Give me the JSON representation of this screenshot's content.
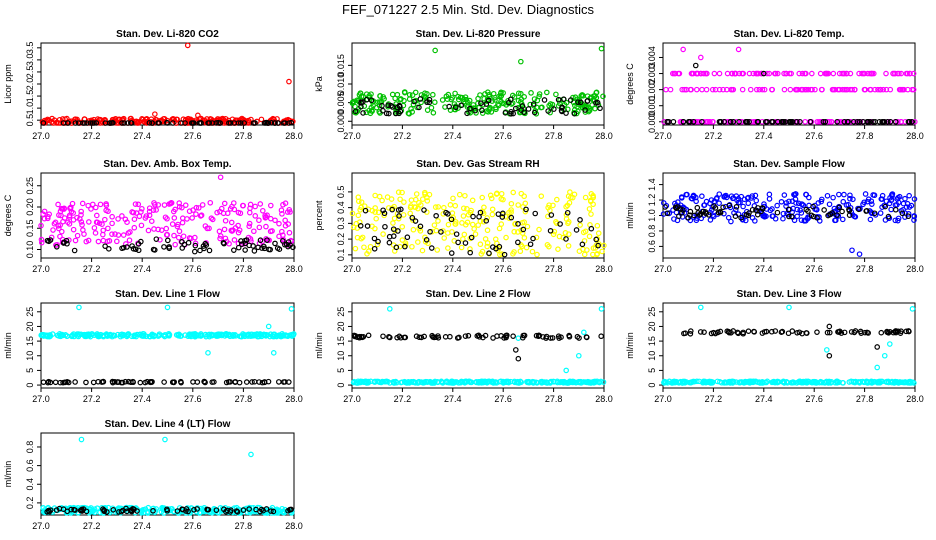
{
  "figure_title": "FEF_071227  2.5 Min. Std. Dev. Diagnostics",
  "colors": {
    "red": "#ff0000",
    "green": "#00c000",
    "magenta": "#ff00ff",
    "yellow": "#ffff00",
    "blue": "#0000ff",
    "cyan": "#00ffff",
    "black": "#000000"
  },
  "chart_data": [
    {
      "type": "scatter",
      "title": "Stan. Dev. Li-820 CO2",
      "ylabel": "Licor ppm",
      "xlim": [
        27.0,
        28.0
      ],
      "ylim": [
        0.3,
        3.7
      ],
      "xticks": [
        "27.0",
        "27.2",
        "27.4",
        "27.6",
        "27.8",
        "28.0"
      ],
      "yticks": [
        0.5,
        1.0,
        1.5,
        2.0,
        2.5,
        3.0,
        3.5
      ],
      "series": [
        {
          "color": "red",
          "base": 0.45,
          "spread": 0.12,
          "outliers": [
            [
              27.58,
              3.6
            ],
            [
              27.98,
              2.1
            ],
            [
              27.45,
              0.75
            ],
            [
              27.62,
              0.7
            ]
          ]
        },
        {
          "color": "black",
          "base": 0.35,
          "spread": 0.05,
          "outliers": []
        }
      ]
    },
    {
      "type": "scatter",
      "title": "Stan. Dev. Li-820 Pressure",
      "ylabel": "kPa",
      "xlim": [
        27.0,
        28.0
      ],
      "ylim": [
        -0.001,
        0.021
      ],
      "xticks": [
        "27.0",
        "27.2",
        "27.4",
        "27.6",
        "27.8",
        "28.0"
      ],
      "yticks": [
        0.0,
        0.005,
        0.01,
        0.015
      ],
      "series": [
        {
          "color": "green",
          "base": 0.005,
          "spread": 0.003,
          "outliers": [
            [
              27.33,
              0.019
            ],
            [
              27.67,
              0.016
            ],
            [
              27.99,
              0.0195
            ]
          ]
        },
        {
          "color": "black",
          "base": 0.004,
          "spread": 0.002,
          "outliers": []
        }
      ]
    },
    {
      "type": "scatter",
      "title": "Stan. Dev. Li-820 Temp.",
      "ylabel": "degrees C",
      "xlim": [
        27.0,
        28.0
      ],
      "ylim": [
        -0.0002,
        0.0049
      ],
      "xticks": [
        "27.0",
        "27.2",
        "27.4",
        "27.6",
        "27.8",
        "28.0"
      ],
      "yticks": [
        0.0,
        0.001,
        0.002,
        0.003,
        0.004
      ],
      "levels": [
        0.0,
        0.002,
        0.003
      ],
      "series": [
        {
          "color": "magenta",
          "base": 0.002,
          "spread": 0.0,
          "outliers": [
            [
              27.08,
              0.0045
            ],
            [
              27.15,
              0.004
            ],
            [
              27.3,
              0.0045
            ],
            [
              27.92,
              0.003
            ]
          ]
        },
        {
          "color": "black",
          "base": 0.0,
          "spread": 0.0,
          "outliers": [
            [
              27.13,
              0.0035
            ],
            [
              27.4,
              0.003
            ]
          ]
        }
      ]
    },
    {
      "type": "scatter",
      "title": "Stan. Dev. Amb. Box Temp.",
      "ylabel": "degrees C",
      "xlim": [
        27.0,
        28.0
      ],
      "ylim": [
        0.08,
        0.28
      ],
      "xticks": [
        "27.0",
        "27.2",
        "27.4",
        "27.6",
        "27.8",
        "28.0"
      ],
      "yticks": [
        0.1,
        0.15,
        0.2,
        0.25
      ],
      "series": [
        {
          "color": "magenta",
          "base": 0.16,
          "spread": 0.05,
          "outliers": [
            [
              27.71,
              0.27
            ]
          ]
        },
        {
          "color": "black",
          "base": 0.11,
          "spread": 0.015,
          "outliers": []
        }
      ]
    },
    {
      "type": "scatter",
      "title": "Stan. Dev. Gas Stream RH",
      "ylabel": "percent",
      "xlim": [
        27.0,
        28.0
      ],
      "ylim": [
        0.08,
        0.62
      ],
      "xticks": [
        "27.0",
        "27.2",
        "27.4",
        "27.6",
        "27.8",
        "28.0"
      ],
      "yticks": [
        0.1,
        0.2,
        0.3,
        0.4,
        0.5
      ],
      "series": [
        {
          "color": "yellow",
          "base": 0.3,
          "spread": 0.2,
          "outliers": []
        },
        {
          "color": "black",
          "base": 0.25,
          "spread": 0.15,
          "outliers": []
        }
      ]
    },
    {
      "type": "scatter",
      "title": "Stan. Dev. Sample Flow",
      "ylabel": "ml/min",
      "xlim": [
        27.0,
        28.0
      ],
      "ylim": [
        0.45,
        1.55
      ],
      "xticks": [
        "27.0",
        "27.2",
        "27.4",
        "27.6",
        "27.8",
        "28.0"
      ],
      "yticks": [
        0.6,
        0.8,
        1.0,
        1.2,
        1.4
      ],
      "series": [
        {
          "color": "blue",
          "base": 1.1,
          "spread": 0.18,
          "outliers": [
            [
              27.78,
              0.5
            ],
            [
              27.75,
              0.55
            ]
          ]
        },
        {
          "color": "black",
          "base": 1.05,
          "spread": 0.08,
          "outliers": []
        }
      ]
    },
    {
      "type": "scatter",
      "title": "Stan. Dev. Line 1 Flow",
      "ylabel": "ml/min",
      "xlim": [
        27.0,
        28.0
      ],
      "ylim": [
        -1,
        28
      ],
      "xticks": [
        "27.0",
        "27.2",
        "27.4",
        "27.6",
        "27.8",
        "28.0"
      ],
      "yticks": [
        0,
        5,
        10,
        15,
        20,
        25
      ],
      "series": [
        {
          "color": "cyan",
          "base": 17,
          "spread": 0.5,
          "outliers": [
            [
              27.15,
              26.5
            ],
            [
              27.5,
              26.5
            ],
            [
              27.66,
              11
            ],
            [
              27.92,
              11
            ],
            [
              27.9,
              20
            ],
            [
              27.99,
              26
            ]
          ]
        },
        {
          "color": "black",
          "base": 1,
          "spread": 0.2,
          "outliers": []
        }
      ]
    },
    {
      "type": "scatter",
      "title": "Stan. Dev. Line 2 Flow",
      "ylabel": "ml/min",
      "xlim": [
        27.0,
        28.0
      ],
      "ylim": [
        -1,
        28
      ],
      "xticks": [
        "27.0",
        "27.2",
        "27.4",
        "27.6",
        "27.8",
        "28.0"
      ],
      "yticks": [
        0,
        5,
        10,
        15,
        20,
        25
      ],
      "series": [
        {
          "color": "cyan",
          "base": 1,
          "spread": 0.3,
          "outliers": [
            [
              27.66,
              16
            ],
            [
              27.85,
              5
            ],
            [
              27.9,
              10
            ],
            [
              27.92,
              18
            ],
            [
              27.99,
              26
            ],
            [
              27.15,
              26
            ]
          ]
        },
        {
          "color": "black",
          "base": 16.5,
          "spread": 0.5,
          "outliers": [
            [
              27.66,
              9
            ],
            [
              27.65,
              12
            ]
          ]
        }
      ]
    },
    {
      "type": "scatter",
      "title": "Stan. Dev. Line 3 Flow",
      "ylabel": "ml/min",
      "xlim": [
        27.0,
        28.0
      ],
      "ylim": [
        -1,
        28
      ],
      "xticks": [
        "27.0",
        "27.2",
        "27.4",
        "27.6",
        "27.8",
        "28.0"
      ],
      "yticks": [
        0,
        5,
        10,
        15,
        20,
        25
      ],
      "series": [
        {
          "color": "cyan",
          "base": 1,
          "spread": 0.3,
          "outliers": [
            [
              27.15,
              26.5
            ],
            [
              27.5,
              26.5
            ],
            [
              27.65,
              12
            ],
            [
              27.85,
              6
            ],
            [
              27.88,
              10
            ],
            [
              27.9,
              14
            ],
            [
              27.99,
              26
            ]
          ]
        },
        {
          "color": "black",
          "base": 18,
          "spread": 0.5,
          "outliers": [
            [
              27.66,
              10
            ],
            [
              27.66,
              20
            ],
            [
              27.85,
              13
            ]
          ]
        }
      ]
    },
    {
      "type": "scatter",
      "title": "Stan. Dev. Line 4 (LT) Flow",
      "ylabel": "ml/min",
      "xlim": [
        27.0,
        28.0
      ],
      "ylim": [
        0.07,
        0.95
      ],
      "xticks": [
        "27.0",
        "27.2",
        "27.4",
        "27.6",
        "27.8",
        "28.0"
      ],
      "yticks": [
        0.2,
        0.4,
        0.6,
        0.8
      ],
      "series": [
        {
          "color": "cyan",
          "base": 0.12,
          "spread": 0.03,
          "outliers": [
            [
              27.16,
              0.88
            ],
            [
              27.49,
              0.88
            ],
            [
              27.83,
              0.72
            ]
          ]
        },
        {
          "color": "black",
          "base": 0.12,
          "spread": 0.02,
          "outliers": []
        }
      ]
    }
  ]
}
